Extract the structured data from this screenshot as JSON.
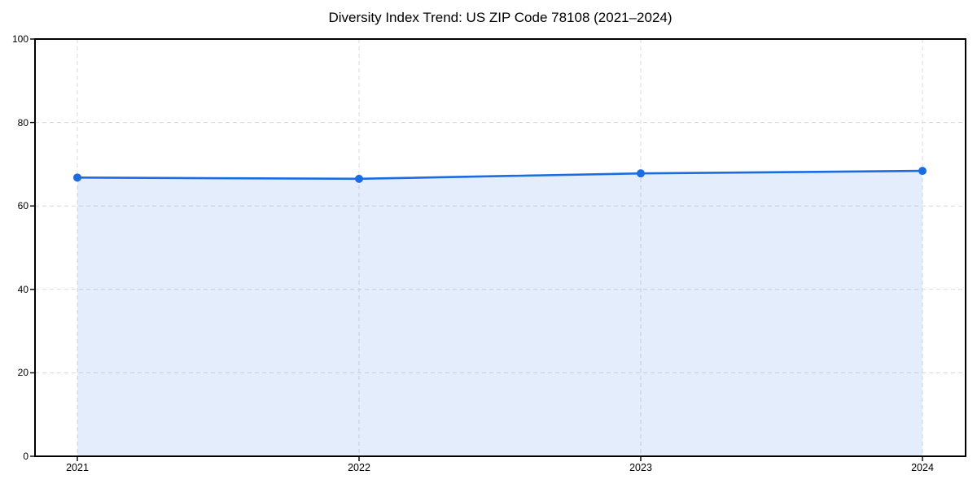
{
  "chart_data": {
    "type": "area",
    "title": "Diversity Index Trend: US ZIP Code 78108 (2021–2024)",
    "categories": [
      "2021",
      "2022",
      "2023",
      "2024"
    ],
    "values": [
      66.8,
      66.5,
      67.8,
      68.4
    ],
    "xlabel": "",
    "ylabel": "",
    "ylim": [
      0,
      100
    ],
    "yticks": [
      0,
      20,
      40,
      60,
      80,
      100
    ],
    "grid": true,
    "legend": "none",
    "line_color": "#1b6ce1",
    "marker_color": "#1b6ce1",
    "fill_color": "#1b6ce1",
    "fill_opacity": 0.12,
    "grid_color": "#d9d9d9",
    "axis_color": "#000000",
    "background_color": "#ffffff"
  }
}
